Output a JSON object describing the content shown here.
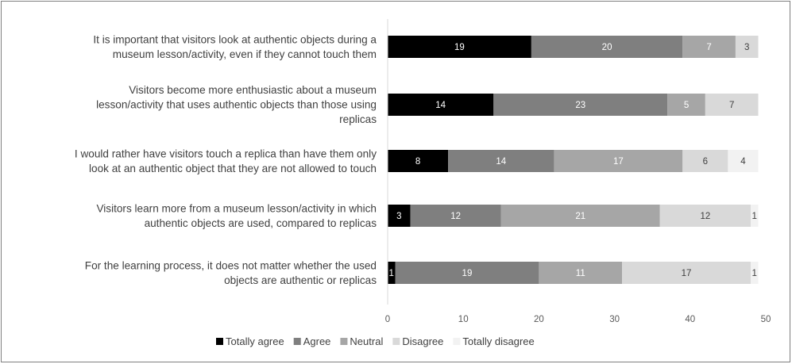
{
  "chart_data": {
    "type": "bar",
    "orientation": "horizontal",
    "stacked": true,
    "title": "",
    "xlabel": "",
    "ylabel": "",
    "xlim": [
      0,
      50
    ],
    "x_ticks": [
      "0",
      "10",
      "20",
      "30",
      "40",
      "50"
    ],
    "grid": false,
    "legend_position": "bottom",
    "categories": [
      "It is important that visitors look at authentic objects during a museum lesson/activity, even if they cannot touch them",
      "Visitors become more enthusiastic about a museum lesson/activity that uses authentic objects than those using replicas",
      "I would rather have visitors touch a replica than have them only look at an authentic object that they are not allowed to touch",
      "Visitors learn more from a museum lesson/activity in which authentic objects are used, compared to replicas",
      "For the learning process, it does not matter whether the used objects are authentic or replicas"
    ],
    "category_lines": [
      [
        "It is important that visitors look at authentic objects during a",
        "museum lesson/activity, even if they cannot touch them"
      ],
      [
        "Visitors become more enthusiastic about a museum",
        "lesson/activity that uses authentic objects than those using",
        "replicas"
      ],
      [
        "I would rather have visitors touch a replica than have them only",
        "look at an authentic object that they are not allowed to touch"
      ],
      [
        "Visitors learn more from a museum lesson/activity in which",
        "authentic objects are used, compared to replicas"
      ],
      [
        "For the learning process, it does not matter whether the used",
        "objects are authentic or replicas"
      ]
    ],
    "series": [
      {
        "name": "Totally agree",
        "color": "#000000",
        "label_color": "#ffffff",
        "values": [
          19,
          14,
          8,
          3,
          1
        ]
      },
      {
        "name": "Agree",
        "color": "#7f7f7f",
        "label_color": "#ffffff",
        "values": [
          20,
          23,
          14,
          12,
          19
        ]
      },
      {
        "name": "Neutral",
        "color": "#a6a6a6",
        "label_color": "#ffffff",
        "values": [
          7,
          5,
          17,
          21,
          11
        ]
      },
      {
        "name": "Disagree",
        "color": "#d9d9d9",
        "label_color": "#404040",
        "values": [
          3,
          7,
          6,
          12,
          17
        ]
      },
      {
        "name": "Totally disagree",
        "color": "#f2f2f2",
        "label_color": "#404040",
        "values": [
          0,
          0,
          4,
          1,
          1
        ]
      }
    ]
  }
}
